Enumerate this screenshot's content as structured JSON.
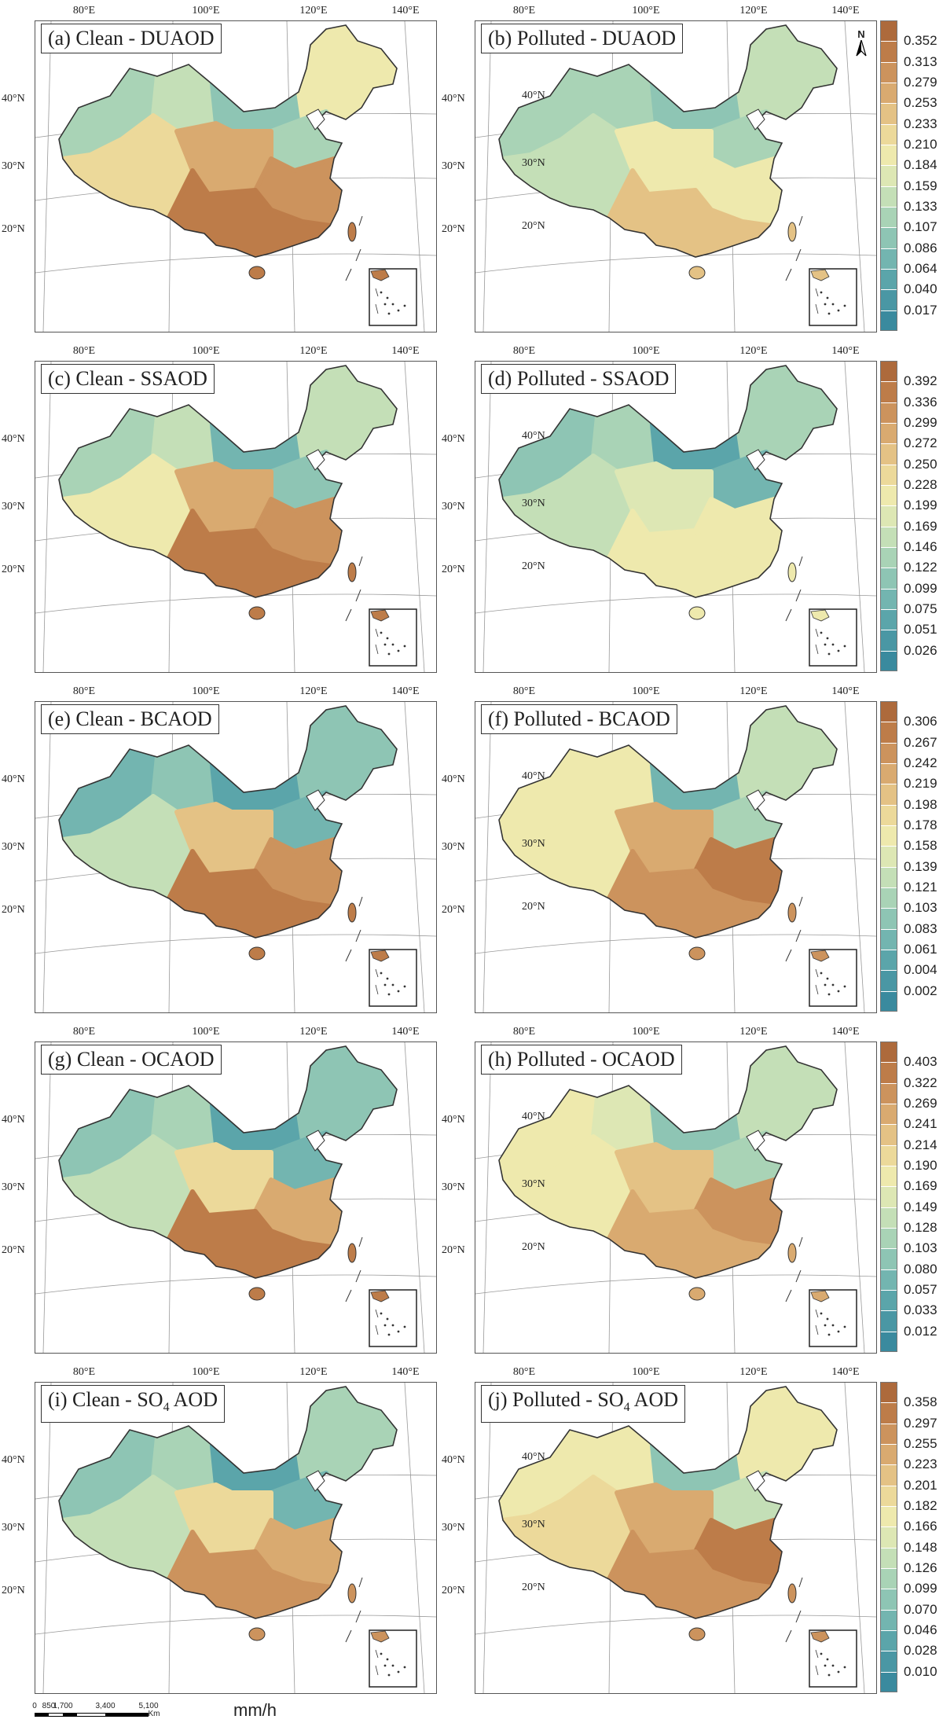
{
  "scale_bar": {
    "ticks": [
      "0",
      "850",
      "1,700",
      "3,400",
      "5,100"
    ],
    "unit": "Km"
  },
  "unit_label": "mm/h",
  "north_label": "N",
  "longitude_labels": [
    "80°E",
    "100°E",
    "120°E",
    "140°E"
  ],
  "latitude_labels": [
    "40°N",
    "30°N",
    "20°N"
  ],
  "color_scale": [
    "#3a8a9e",
    "#4a97a4",
    "#5ba5aa",
    "#73b5b0",
    "#8ec5b4",
    "#a9d3b6",
    "#c4dfb7",
    "#dde7b4",
    "#eee9ad",
    "#ecd99a",
    "#e4c285",
    "#d9aa70",
    "#cc935d",
    "#bd7c49",
    "#ad6a3c"
  ],
  "rows": [
    {
      "legend": [
        "0.352",
        "0.313",
        "0.279",
        "0.253",
        "0.233",
        "0.210",
        "0.184",
        "0.159",
        "0.133",
        "0.107",
        "0.086",
        "0.064",
        "0.040",
        "0.017"
      ],
      "panels": [
        {
          "letter": "(a)",
          "condition": "Clean",
          "species": "DUAOD",
          "sub": "",
          "lvl": [
            0.35,
            0.45,
            0.25,
            0.55,
            0.35,
            0.65,
            0.8,
            0.85,
            0.9
          ]
        },
        {
          "letter": "(b)",
          "condition": "Polluted",
          "species": "DUAOD",
          "sub": "",
          "lvl": [
            0.35,
            0.35,
            0.25,
            0.45,
            0.35,
            0.45,
            0.55,
            0.6,
            0.7
          ]
        }
      ]
    },
    {
      "legend": [
        "0.392",
        "0.336",
        "0.299",
        "0.272",
        "0.250",
        "0.228",
        "0.199",
        "0.169",
        "0.146",
        "0.122",
        "0.099",
        "0.075",
        "0.051",
        "0.026"
      ],
      "panels": [
        {
          "letter": "(c)",
          "condition": "Clean",
          "species": "SSAOD",
          "sub": "",
          "lvl": [
            0.35,
            0.45,
            0.2,
            0.45,
            0.3,
            0.55,
            0.75,
            0.85,
            0.9
          ]
        },
        {
          "letter": "(d)",
          "condition": "Polluted",
          "species": "SSAOD",
          "sub": "",
          "lvl": [
            0.3,
            0.35,
            0.15,
            0.35,
            0.2,
            0.4,
            0.5,
            0.55,
            0.6
          ]
        }
      ]
    },
    {
      "legend": [
        "0.306",
        "0.267",
        "0.242",
        "0.219",
        "0.198",
        "0.178",
        "0.158",
        "0.139",
        "0.121",
        "0.103",
        "0.083",
        "0.061",
        "0.004",
        "0.002"
      ],
      "panels": [
        {
          "letter": "(e)",
          "condition": "Clean",
          "species": "BCAOD",
          "sub": "",
          "lvl": [
            0.2,
            0.25,
            0.15,
            0.3,
            0.2,
            0.4,
            0.7,
            0.85,
            0.9
          ]
        },
        {
          "letter": "(f)",
          "condition": "Polluted",
          "species": "BCAOD",
          "sub": "",
          "lvl": [
            0.55,
            0.6,
            0.2,
            0.45,
            0.35,
            0.6,
            0.75,
            0.9,
            0.85
          ]
        }
      ]
    },
    {
      "legend": [
        "0.403",
        "0.322",
        "0.269",
        "0.241",
        "0.214",
        "0.190",
        "0.169",
        "0.149",
        "0.128",
        "0.103",
        "0.080",
        "0.057",
        "0.033",
        "0.012"
      ],
      "panels": [
        {
          "letter": "(g)",
          "condition": "Clean",
          "species": "OCAOD",
          "sub": "",
          "lvl": [
            0.3,
            0.35,
            0.15,
            0.3,
            0.2,
            0.45,
            0.65,
            0.8,
            0.9
          ]
        },
        {
          "letter": "(h)",
          "condition": "Polluted",
          "species": "OCAOD",
          "sub": "",
          "lvl": [
            0.55,
            0.5,
            0.3,
            0.45,
            0.35,
            0.55,
            0.7,
            0.85,
            0.8
          ]
        }
      ]
    },
    {
      "legend": [
        "0.358",
        "0.297",
        "0.255",
        "0.223",
        "0.201",
        "0.182",
        "0.166",
        "0.148",
        "0.126",
        "0.099",
        "0.070",
        "0.046",
        "0.028",
        "0.010"
      ],
      "panels": [
        {
          "letter": "(i)",
          "condition": "Clean",
          "species": "SO",
          "sub": "4",
          "suffix": " AOD",
          "lvl": [
            0.3,
            0.35,
            0.15,
            0.35,
            0.2,
            0.45,
            0.65,
            0.8,
            0.85
          ]
        },
        {
          "letter": "(j)",
          "condition": "Polluted",
          "species": "SO",
          "sub": "4",
          "suffix": " AOD",
          "lvl": [
            0.55,
            0.6,
            0.25,
            0.55,
            0.4,
            0.65,
            0.75,
            0.95,
            0.85
          ]
        }
      ]
    }
  ]
}
